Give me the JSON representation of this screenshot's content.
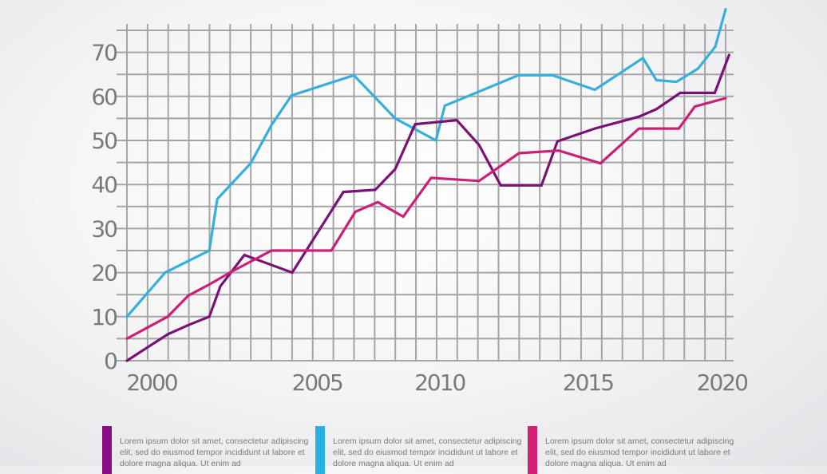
{
  "chart_data": {
    "type": "line",
    "title": "",
    "xlabel": "",
    "ylabel": "",
    "xlim": [
      2000,
      2021
    ],
    "ylim": [
      0,
      75
    ],
    "grid": true,
    "x_ticks": [
      {
        "label": "2000",
        "value": 2000
      },
      {
        "label": "2005",
        "value": 2005.8
      },
      {
        "label": "2010",
        "value": 2010.1
      },
      {
        "label": "2015",
        "value": 2015.3
      },
      {
        "label": "2020",
        "value": 2020
      }
    ],
    "y_ticks": [
      {
        "label": "0",
        "value": 0
      },
      {
        "label": "10",
        "value": 10
      },
      {
        "label": "20",
        "value": 20
      },
      {
        "label": "30",
        "value": 30
      },
      {
        "label": "40",
        "value": 40
      },
      {
        "label": "50",
        "value": 50
      },
      {
        "label": "60",
        "value": 60
      },
      {
        "label": "70",
        "value": 70
      }
    ],
    "series": [
      {
        "name": "cyan-series",
        "color": "#35b0dc",
        "points": [
          [
            2000,
            10
          ],
          [
            2001.34,
            20
          ],
          [
            2002.89,
            25
          ],
          [
            2003.17,
            36.7
          ],
          [
            2004.34,
            44.8
          ],
          [
            2005.07,
            53.5
          ],
          [
            2005.77,
            60.2
          ],
          [
            2007.96,
            64.8
          ],
          [
            2009.41,
            55
          ],
          [
            2010.84,
            50
          ],
          [
            2011.15,
            57.9
          ],
          [
            2011.57,
            59
          ],
          [
            2013.73,
            64.8
          ],
          [
            2014.93,
            64.8
          ],
          [
            2016.41,
            61.5
          ],
          [
            2018.1,
            68.7
          ],
          [
            2018.57,
            63.7
          ],
          [
            2019.27,
            63.3
          ],
          [
            2020.03,
            66.3
          ],
          [
            2020.64,
            71.3
          ],
          [
            2021,
            79.8
          ]
        ]
      },
      {
        "name": "purple-series",
        "color": "#7a1177",
        "points": [
          [
            2000,
            0
          ],
          [
            2001.43,
            6
          ],
          [
            2002.16,
            8.1
          ],
          [
            2002.89,
            10
          ],
          [
            2003.28,
            16.9
          ],
          [
            2004.12,
            24
          ],
          [
            2005.8,
            20
          ],
          [
            2007.59,
            38.3
          ],
          [
            2008.71,
            38.8
          ],
          [
            2009.41,
            43.5
          ],
          [
            2010.11,
            53.7
          ],
          [
            2011.57,
            54.6
          ],
          [
            2012.35,
            49
          ],
          [
            2013.11,
            39.8
          ],
          [
            2013.78,
            39.8
          ],
          [
            2014.54,
            39.8
          ],
          [
            2015.1,
            49.8
          ],
          [
            2016.41,
            52.7
          ],
          [
            2017.96,
            55.4
          ],
          [
            2018.57,
            57.1
          ],
          [
            2019.41,
            60.8
          ],
          [
            2020.62,
            60.8
          ],
          [
            2021.12,
            69.4
          ]
        ]
      },
      {
        "name": "magenta-series",
        "color": "#cc1f78",
        "points": [
          [
            2000,
            5
          ],
          [
            2001.43,
            10
          ],
          [
            2002.16,
            14.8
          ],
          [
            2002.89,
            17.3
          ],
          [
            2003.61,
            20
          ],
          [
            2005.07,
            25
          ],
          [
            2007.17,
            25
          ],
          [
            2008.01,
            33.8
          ],
          [
            2008.8,
            36
          ],
          [
            2009.69,
            32.7
          ],
          [
            2010.67,
            41.5
          ],
          [
            2012.35,
            40.8
          ],
          [
            2013.75,
            47.1
          ],
          [
            2015.15,
            47.7
          ],
          [
            2016.61,
            44.8
          ],
          [
            2017.96,
            52.7
          ],
          [
            2019.36,
            52.7
          ],
          [
            2019.92,
            57.7
          ],
          [
            2021,
            59.6
          ]
        ]
      }
    ]
  },
  "legend": [
    {
      "color": "#8b0a86",
      "text": "Lorem ipsum dolor sit amet, consectetur adipiscing elit, sed do eiusmod tempor incididunt ut labore et dolore magna aliqua. Ut enim ad"
    },
    {
      "color": "#28b1e3",
      "text": "Lorem ipsum dolor sit amet, consectetur adipiscing elit, sed do eiusmod tempor incididunt ut labore et dolore magna aliqua. Ut enim ad"
    },
    {
      "color": "#d61e79",
      "text": "Lorem ipsum dolor sit amet, consectetur adipiscing elit, sed do eiusmod tempor incididunt ut labore et dolore magna aliqua. Ut enim ad"
    }
  ]
}
